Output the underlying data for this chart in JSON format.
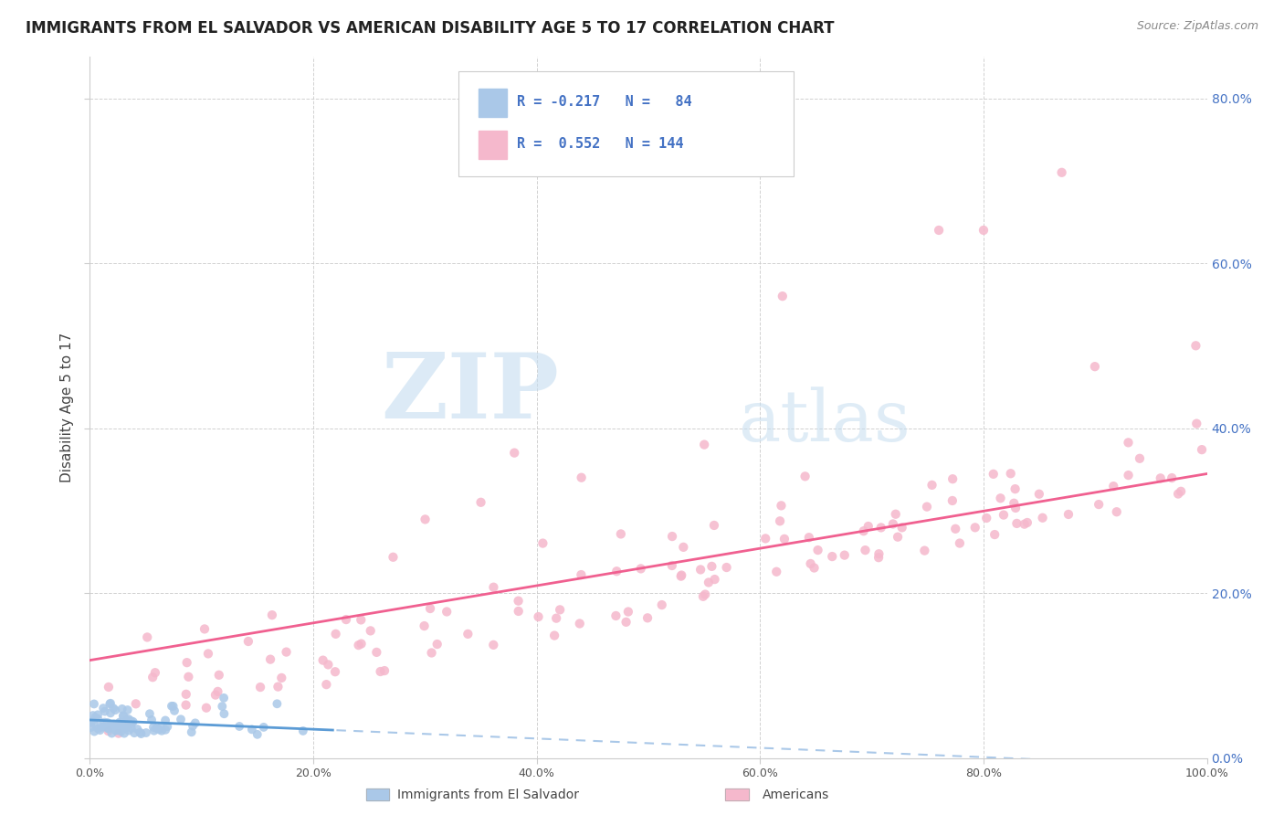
{
  "title": "IMMIGRANTS FROM EL SALVADOR VS AMERICAN DISABILITY AGE 5 TO 17 CORRELATION CHART",
  "source": "Source: ZipAtlas.com",
  "ylabel": "Disability Age 5 to 17",
  "legend_label_1": "Immigrants from El Salvador",
  "legend_label_2": "Americans",
  "R1": -0.217,
  "N1": 84,
  "R2": 0.552,
  "N2": 144,
  "color_blue": "#aac8e8",
  "color_pink": "#f5b8cc",
  "color_line_blue": "#5b9bd5",
  "color_line_pink": "#f06090",
  "color_line_blue_dash": "#aac8e8",
  "watermark_zip": "ZIP",
  "watermark_atlas": "atlas",
  "xlim": [
    0,
    1.0
  ],
  "ylim": [
    0,
    0.85
  ],
  "background_color": "#ffffff",
  "grid_color": "#cccccc",
  "title_fontsize": 12,
  "axis_label_fontsize": 11,
  "right_tick_color": "#4472c4",
  "bottom_tick_color": "#555555"
}
